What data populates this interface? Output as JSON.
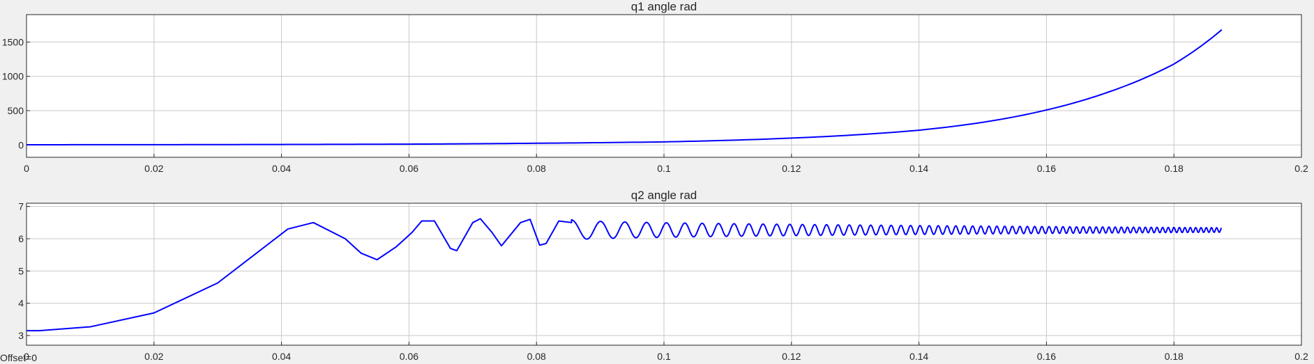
{
  "footer": {
    "offset_label": "Offset=0"
  },
  "chart_data": [
    {
      "type": "line",
      "title": "q1 angle rad",
      "xlabel": "",
      "ylabel": "",
      "xlim": [
        0,
        0.2
      ],
      "ylim": [
        -180,
        1900
      ],
      "grid": true,
      "xticks": [
        "0",
        "0.02",
        "0.04",
        "0.06",
        "0.08",
        "0.1",
        "0.12",
        "0.14",
        "0.16",
        "0.18",
        "0.2"
      ],
      "yticks": [
        "0",
        "500",
        "1000",
        "1500"
      ],
      "line_color": "#0000ff",
      "series": [
        {
          "x": [
            0,
            0.02,
            0.04,
            0.06,
            0.08,
            0.1,
            0.12,
            0.14,
            0.15,
            0.16,
            0.17,
            0.18,
            0.1875
          ],
          "values": [
            3,
            4,
            7,
            12,
            25,
            45,
            100,
            215,
            330,
            510,
            780,
            1180,
            1680
          ]
        }
      ]
    },
    {
      "type": "line",
      "title": "q2 angle rad",
      "xlabel": "",
      "ylabel": "",
      "xlim": [
        0,
        0.2
      ],
      "ylim": [
        2.7,
        7.1
      ],
      "grid": true,
      "xticks": [
        "0",
        "0.02",
        "0.04",
        "0.06",
        "0.08",
        "0.1",
        "0.12",
        "0.14",
        "0.16",
        "0.18",
        "0.2"
      ],
      "yticks": [
        "3",
        "4",
        "5",
        "6",
        "7"
      ],
      "line_color": "#0000ff",
      "series": [
        {
          "x": [
            0,
            0.002,
            0.01,
            0.02,
            0.03,
            0.041,
            0.045,
            0.05,
            0.0525,
            0.055,
            0.058,
            0.0605,
            0.062,
            0.064,
            0.0665,
            0.0675,
            0.07,
            0.0712,
            0.073,
            0.0745,
            0.0775,
            0.079,
            0.0805,
            0.0815,
            0.0825,
            0.0835,
            0.0855
          ],
          "values": [
            3.15,
            3.15,
            3.27,
            3.7,
            4.63,
            6.3,
            6.5,
            6.0,
            5.55,
            5.35,
            5.75,
            6.2,
            6.55,
            6.55,
            5.7,
            5.63,
            6.5,
            6.62,
            6.2,
            5.78,
            6.5,
            6.6,
            5.8,
            5.85,
            6.2,
            6.55,
            6.5
          ]
        }
      ],
      "oscillation": {
        "start_x": 0.0855,
        "end_x": 0.1875,
        "center": 6.27,
        "amplitude_start": 0.32,
        "amplitude_end": 0.07,
        "period_start": 0.0055,
        "period_end": 0.0008
      }
    }
  ]
}
